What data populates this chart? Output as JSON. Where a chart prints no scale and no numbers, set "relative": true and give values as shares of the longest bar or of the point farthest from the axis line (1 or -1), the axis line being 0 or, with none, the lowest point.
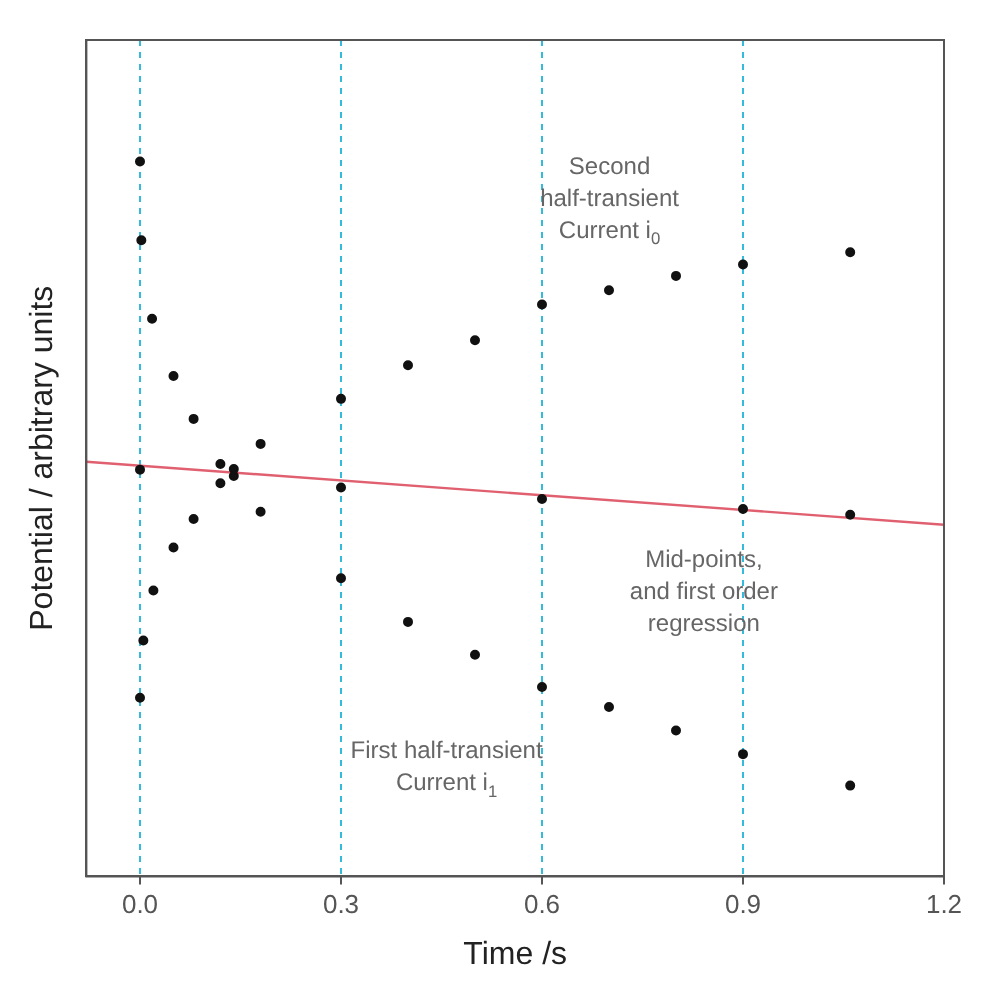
{
  "chart_data": {
    "type": "scatter",
    "relative": true,
    "xlabel": "Time /s",
    "ylabel": "Potential / arbitrary units",
    "xlim": [
      -0.08,
      1.2
    ],
    "xticks": [
      {
        "value": 0,
        "label": "0.0"
      },
      {
        "value": 0.3,
        "label": "0.3"
      },
      {
        "value": 0.6,
        "label": "0.6"
      },
      {
        "value": 0.9,
        "label": "0.9"
      },
      {
        "value": 1.2,
        "label": "1.2"
      }
    ],
    "grid": "x",
    "legend": false,
    "marker": "circle",
    "series": [
      {
        "color": "#111111",
        "x": [
          0.0,
          0.002,
          0.0,
          0.005,
          0.02,
          0.05,
          0.08,
          0.12,
          0.14,
          0.18,
          0.3,
          0.4,
          0.5,
          0.6,
          0.7,
          0.8,
          0.9,
          1.06
        ],
        "values": [
          1.0,
          0.89,
          0.25,
          0.33,
          0.4,
          0.46,
          0.5,
          0.55,
          0.57,
          0.605,
          0.668,
          0.715,
          0.75,
          0.8,
          0.82,
          0.84,
          0.856,
          0.873
        ]
      },
      {
        "color": "#111111",
        "x": [
          0.018,
          0.05,
          0.08,
          0.12,
          0.14,
          0.18,
          0.3,
          0.4,
          0.5,
          0.6,
          0.7,
          0.8,
          0.9,
          1.06
        ],
        "values": [
          0.78,
          0.7,
          0.64,
          0.577,
          0.56,
          0.51,
          0.417,
          0.356,
          0.31,
          0.265,
          0.237,
          0.204,
          0.171,
          0.127
        ]
      },
      {
        "color": "#111111",
        "x": [
          0.0,
          0.14,
          0.3,
          0.6,
          0.9,
          1.06
        ],
        "values": [
          0.569,
          null,
          0.544,
          0.528,
          0.514,
          0.506
        ]
      },
      {
        "type": "line",
        "color": "#e06070",
        "marker": "none",
        "x": [
          -0.08,
          1.2
        ],
        "values": [
          0.58,
          0.492
        ]
      }
    ],
    "annotations": [
      "Second\nhalf-transient\nCurrent i$_{0}$",
      "Mid-points,\nand first order\nregression",
      "First half-transient\nCurrent i$_{1}$"
    ]
  }
}
